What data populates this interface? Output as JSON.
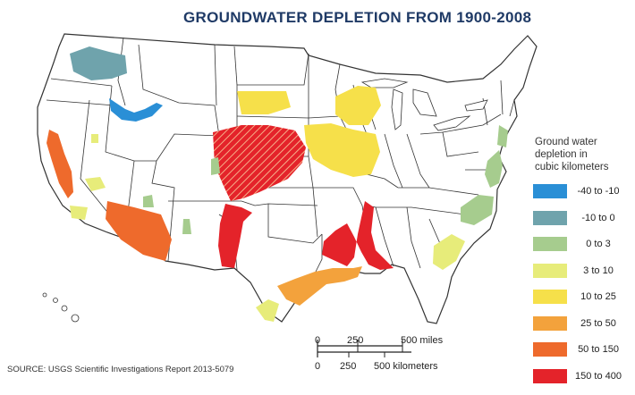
{
  "title": "GROUNDWATER DEPLETION FROM 1900-2008",
  "legend": {
    "heading_lines": [
      "Ground water",
      "depletion in",
      "cubic kilometers"
    ],
    "items": [
      {
        "label": "-40 to -10",
        "color": "#2a8fd6"
      },
      {
        "label": "-10 to 0",
        "color": "#6fa3ac"
      },
      {
        "label": "0 to 3",
        "color": "#a6cc8e"
      },
      {
        "label": "3 to 10",
        "color": "#e7ec7a"
      },
      {
        "label": "10 to 25",
        "color": "#f6e04a"
      },
      {
        "label": "25 to 50",
        "color": "#f3a23c"
      },
      {
        "label": "50 to 150",
        "color": "#ee6a2c"
      },
      {
        "label": "150 to 400",
        "color": "#e4232a"
      }
    ]
  },
  "scale": {
    "miles": {
      "ticks": [
        "0",
        "250",
        "500 miles"
      ]
    },
    "kilometers": {
      "ticks": [
        "0",
        "250",
        "500 kilometers"
      ]
    }
  },
  "source": "SOURCE: USGS Scientific Investigations Report 2013-5079"
}
